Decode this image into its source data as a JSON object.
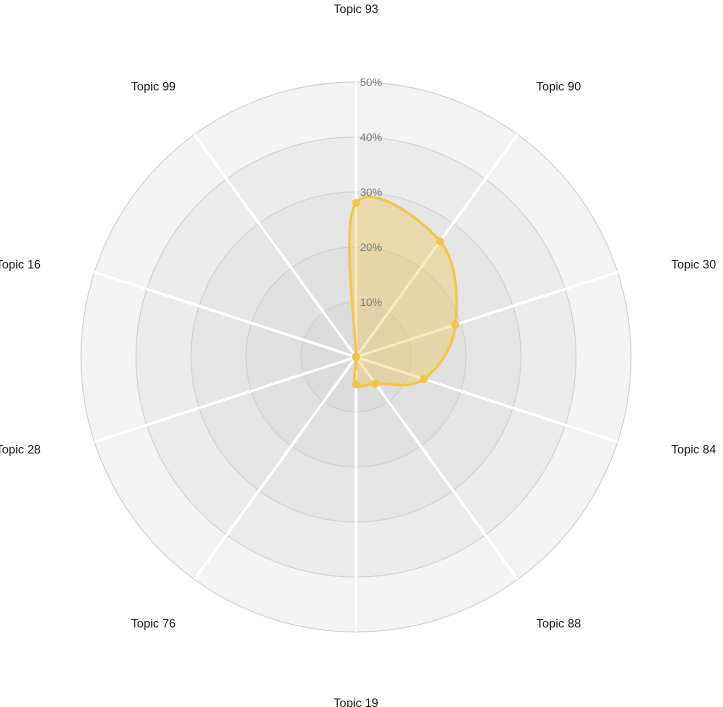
{
  "chart_data": {
    "type": "radar",
    "axes": [
      "Topic 93",
      "Topic 90",
      "Topic 30",
      "Topic 84",
      "Topic 88",
      "Topic 19",
      "Topic 76",
      "Topic 28",
      "Topic 16",
      "Topic 99"
    ],
    "series": [
      {
        "values": [
          28,
          26,
          19,
          13,
          6,
          5,
          0,
          0,
          0,
          0
        ],
        "color": "#f2c744"
      }
    ],
    "radial_ticks": [
      10,
      20,
      30,
      40,
      50
    ],
    "radial_tick_labels": [
      "10%",
      "20%",
      "30%",
      "40%",
      "50%"
    ],
    "rmax": 50,
    "grid": true,
    "legend": "none"
  }
}
